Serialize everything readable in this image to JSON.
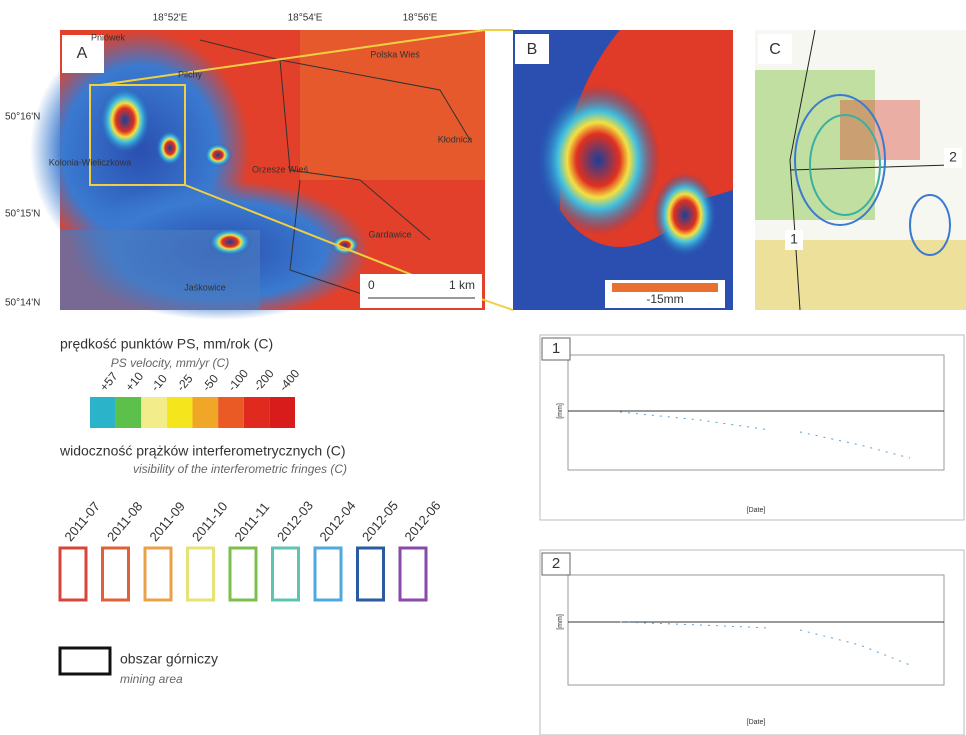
{
  "panels": {
    "a": {
      "label": "A",
      "lon_labels": [
        "18°52'E",
        "18°54'E",
        "18°56'E"
      ],
      "lat_labels": [
        "50°16'N",
        "50°15'N",
        "50°14'N"
      ],
      "places": [
        "Pniówek",
        "Pilchy",
        "Polska Wieś",
        "Kolonia-Wieliczkowa",
        "Orzesze Wieś",
        "Kłodnica",
        "Gardawice",
        "Jaśkowice"
      ],
      "scale": {
        "start": "0",
        "end": "1 km"
      }
    },
    "b": {
      "label": "B",
      "scale": "-15mm"
    },
    "c": {
      "label": "C",
      "profiles": [
        "1",
        "2"
      ]
    }
  },
  "legend": {
    "velocity": {
      "title": "prędkość punktów PS, mm/rok  (C)",
      "subtitle": "PS velocity, mm/yr  (C)",
      "classes": [
        {
          "label": "+57",
          "color": "#2bb3c9"
        },
        {
          "label": "+10",
          "color": "#5cc04a"
        },
        {
          "label": "-10",
          "color": "#f3ec8a"
        },
        {
          "label": "-25",
          "color": "#f5e51c"
        },
        {
          "label": "-50",
          "color": "#f0a727"
        },
        {
          "label": "-100",
          "color": "#ea5a24"
        },
        {
          "label": "-200",
          "color": "#e02a1f"
        },
        {
          "label": "-400",
          "color": "#d81c1c"
        }
      ]
    },
    "fringes": {
      "title": "widoczność prążków interferometrycznych (C)",
      "subtitle": "visibility of the interferometric fringes (C)",
      "dates": [
        {
          "label": "2011-07",
          "color": "#d8443a"
        },
        {
          "label": "2011-08",
          "color": "#e0603a"
        },
        {
          "label": "2011-09",
          "color": "#e8a24a"
        },
        {
          "label": "2011-10",
          "color": "#e6e27a"
        },
        {
          "label": "2011-11",
          "color": "#7cbf4c"
        },
        {
          "label": "2012-03",
          "color": "#5ec3b0"
        },
        {
          "label": "2012-04",
          "color": "#4fa8e0"
        },
        {
          "label": "2012-05",
          "color": "#2a5aa0"
        },
        {
          "label": "2012-06",
          "color": "#8a4aa8"
        }
      ]
    },
    "mining": {
      "title": "obszar górniczy",
      "subtitle": "mining area"
    }
  },
  "plots": [
    {
      "label": "1",
      "y_label": "[mm]",
      "x_label": "[Date]"
    },
    {
      "label": "2",
      "y_label": "[mm]",
      "x_label": "[Date]"
    }
  ]
}
